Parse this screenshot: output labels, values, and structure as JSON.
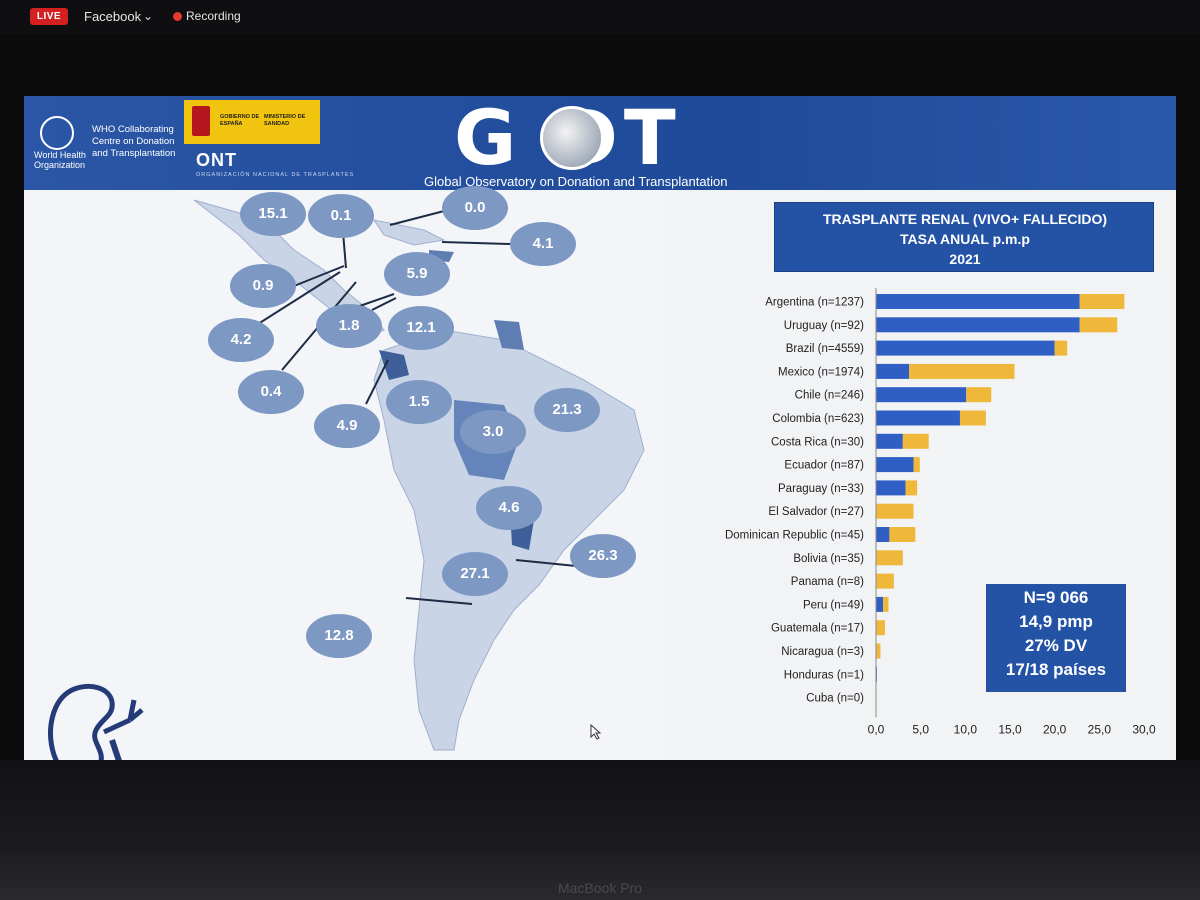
{
  "stream": {
    "live": "LIVE",
    "platform": "Facebook",
    "recording": "Recording"
  },
  "device": {
    "label": "MacBook Pro"
  },
  "header": {
    "who_org": "World Health Organization",
    "who_centre": "WHO Collaborating Centre on Donation and Transplantation",
    "gov_left": "GOBIERNO DE ESPAÑA",
    "gov_right": "MINISTERIO DE SANIDAD",
    "ont": "ONT",
    "ont_sub": "ORGANIZACIÓN NACIONAL DE TRASPLANTES",
    "godt": "G  DT",
    "godt_sub": "Global Observatory on Donation and  Transplantation"
  },
  "map": {
    "bubbles": [
      {
        "value": "15.1"
      },
      {
        "value": "0.1"
      },
      {
        "value": "0.0"
      },
      {
        "value": "4.1"
      },
      {
        "value": "0.9"
      },
      {
        "value": "5.9"
      },
      {
        "value": "4.2"
      },
      {
        "value": "1.8"
      },
      {
        "value": "12.1"
      },
      {
        "value": "0.4"
      },
      {
        "value": "4.9"
      },
      {
        "value": "1.5"
      },
      {
        "value": "3.0"
      },
      {
        "value": "21.3"
      },
      {
        "value": "4.6"
      },
      {
        "value": "26.3"
      },
      {
        "value": "27.1"
      },
      {
        "value": "12.8"
      }
    ]
  },
  "colors": {
    "living": "#2f5fc4",
    "deceased": "#f0b83a",
    "bubble": "#7e98c4",
    "header": "#2453a5"
  },
  "chart_data": {
    "type": "bar",
    "orientation": "horizontal",
    "stacked": true,
    "title": [
      "TRASPLANTE RENAL (VIVO+ FALLECIDO)",
      "TASA ANUAL  p.m.p",
      "2021"
    ],
    "categories": [
      "Argentina (n=1237)",
      "Uruguay (n=92)",
      "Brazil (n=4559)",
      "Mexico (n=1974)",
      "Chile (n=246)",
      "Colombia (n=623)",
      "Costa Rica (n=30)",
      "Ecuador (n=87)",
      "Paraguay (n=33)",
      "El Salvador (n=27)",
      "Dominican Republic (n=45)",
      "Bolivia (n=35)",
      "Panama (n=8)",
      "Peru (n=49)",
      "Guatemala (n=17)",
      "Nicaragua (n=3)",
      "Honduras (n=1)",
      "Cuba (n=0)"
    ],
    "series": [
      {
        "values": [
          22.8,
          22.8,
          20.0,
          3.7,
          10.1,
          9.4,
          3.0,
          4.2,
          3.3,
          0.0,
          1.5,
          0.0,
          0.0,
          0.8,
          0.0,
          0.0,
          0.1,
          0.0
        ]
      },
      {
        "values": [
          5.0,
          4.2,
          1.4,
          11.8,
          2.8,
          2.9,
          2.9,
          0.7,
          1.3,
          4.2,
          2.9,
          3.0,
          2.0,
          0.6,
          1.0,
          0.5,
          0.0,
          0.0
        ]
      }
    ],
    "xticks": [
      "0,0",
      "5,0",
      "10,0",
      "15,0",
      "20,0",
      "25,0",
      "30,0"
    ],
    "xlim": [
      0,
      30
    ],
    "grid": false,
    "summary": [
      "N=9 066",
      "14,9 pmp",
      "27% DV",
      "17/18 países"
    ]
  }
}
